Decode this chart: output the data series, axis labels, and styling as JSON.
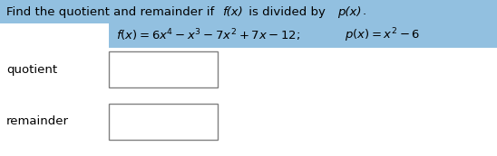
{
  "title": "Find the quotient and remainder if f(x) is divided by p(x).",
  "title_bg": "#92c0e0",
  "formula_bg": "#92c0e0",
  "label_quotient": "quotient",
  "label_remainder": "remainder",
  "box_facecolor": "#ffffff",
  "box_edgecolor": "#808080",
  "background_color": "#ffffff",
  "text_color": "#000000",
  "title_fontsize": 9.5,
  "formula_fontsize": 9.5,
  "label_fontsize": 9.5,
  "title_text_style": "normal",
  "fig_width": 5.48,
  "fig_height": 1.73,
  "dpi": 100
}
